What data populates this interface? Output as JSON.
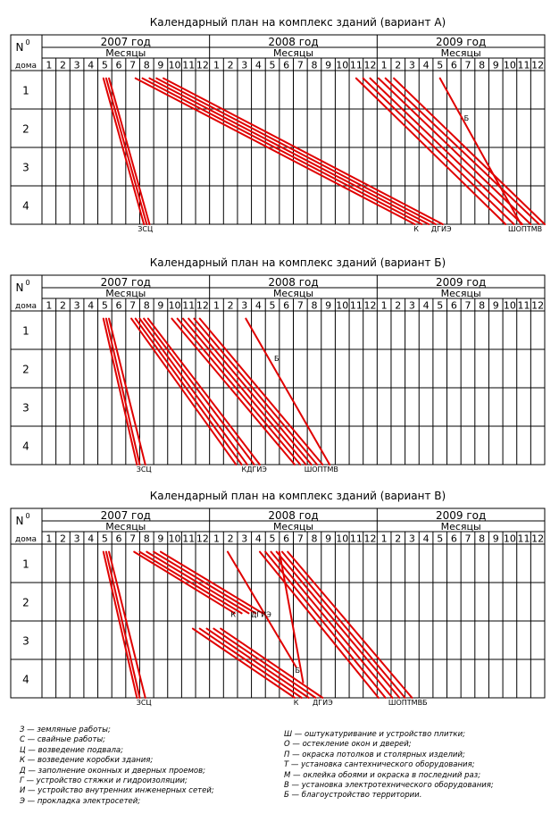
{
  "colors": {
    "grid": "#000000",
    "line": "#e00000",
    "text": "#000000",
    "background": "#ffffff"
  },
  "header": {
    "n0_label": "N",
    "n0_sup": "0",
    "doma_label": "дома",
    "months_label": "Месяцы",
    "house_numbers": [
      "1",
      "2",
      "3",
      "4"
    ],
    "month_numbers": [
      "1",
      "2",
      "3",
      "4",
      "5",
      "6",
      "7",
      "8",
      "9",
      "10",
      "11",
      "12"
    ]
  },
  "plans": [
    {
      "title": "Календарный план на комплекс зданий (вариант А)",
      "years": [
        "2007 год",
        "2008 год",
        "2009 год"
      ],
      "bottom_labels": [
        {
          "text": "ЗСЦ",
          "month": 7.4
        },
        {
          "text": "К",
          "month": 26.8
        },
        {
          "text": "ДГИЭ",
          "month": 28.6
        },
        {
          "text": "ШОПТМВ",
          "month": 34.6
        }
      ],
      "mid_labels": [
        {
          "text": "Б",
          "month": 30.4,
          "row": 1.3
        }
      ],
      "chart_data": {
        "type": "line",
        "x_unit": "month index from January 2007 (0–36)",
        "y_unit": "house (0 = top of house 1, 4 = bottom of house 4)",
        "series": [
          {
            "code": "З",
            "x": [
              4.4,
              7.3
            ],
            "y": [
              0.2,
              4
            ]
          },
          {
            "code": "С",
            "x": [
              4.6,
              7.5
            ],
            "y": [
              0.2,
              4
            ]
          },
          {
            "code": "Ц",
            "x": [
              4.8,
              7.7
            ],
            "y": [
              0.2,
              4
            ]
          },
          {
            "code": "К",
            "x": [
              6.7,
              26.7
            ],
            "y": [
              0.2,
              4
            ]
          },
          {
            "code": "Д",
            "x": [
              7.2,
              27.2
            ],
            "y": [
              0.2,
              4
            ]
          },
          {
            "code": "Г",
            "x": [
              7.7,
              27.7
            ],
            "y": [
              0.2,
              4
            ]
          },
          {
            "code": "И",
            "x": [
              8.2,
              28.2
            ],
            "y": [
              0.2,
              4
            ]
          },
          {
            "code": "Э",
            "x": [
              8.7,
              28.7
            ],
            "y": [
              0.2,
              4
            ]
          },
          {
            "code": "Ш",
            "x": [
              22.5,
              33.2
            ],
            "y": [
              0.2,
              4
            ]
          },
          {
            "code": "О",
            "x": [
              23.0,
              33.8
            ],
            "y": [
              0.2,
              4
            ]
          },
          {
            "code": "П",
            "x": [
              23.5,
              34.4
            ],
            "y": [
              0.2,
              4
            ]
          },
          {
            "code": "Т",
            "x": [
              24.1,
              35.0
            ],
            "y": [
              0.2,
              4
            ]
          },
          {
            "code": "М",
            "x": [
              24.6,
              35.6
            ],
            "y": [
              0.2,
              4
            ]
          },
          {
            "code": "В",
            "x": [
              25.2,
              36.0
            ],
            "y": [
              0.2,
              4
            ]
          },
          {
            "code": "Б",
            "x": [
              28.5,
              34.3
            ],
            "y": [
              0.2,
              4
            ]
          }
        ]
      }
    },
    {
      "title": "Календарный план на комплекс зданий (вариант Б)",
      "years": [
        "2007 год",
        "2008 год",
        "2009 год"
      ],
      "bottom_labels": [
        {
          "text": "ЗСЦ",
          "month": 7.3
        },
        {
          "text": "КДГИЭ",
          "month": 15.2
        },
        {
          "text": "ШОПТМВ",
          "month": 20.0
        }
      ],
      "mid_labels": [
        {
          "text": "Б",
          "month": 16.8,
          "row": 1.3
        }
      ],
      "chart_data": {
        "type": "line",
        "x_unit": "month index from January 2007 (0–36)",
        "y_unit": "house (0 = top of house 1, 4 = bottom of house 4)",
        "series": [
          {
            "code": "З",
            "x": [
              4.4,
              6.8
            ],
            "y": [
              0.2,
              4
            ]
          },
          {
            "code": "С",
            "x": [
              4.6,
              7.0
            ],
            "y": [
              0.2,
              4
            ]
          },
          {
            "code": "Ц",
            "x": [
              4.8,
              7.4
            ],
            "y": [
              0.2,
              4
            ]
          },
          {
            "code": "К",
            "x": [
              6.4,
              13.9
            ],
            "y": [
              0.2,
              4
            ]
          },
          {
            "code": "Д",
            "x": [
              6.7,
              14.3
            ],
            "y": [
              0.2,
              4
            ]
          },
          {
            "code": "Г",
            "x": [
              7.0,
              14.7
            ],
            "y": [
              0.2,
              4
            ]
          },
          {
            "code": "И",
            "x": [
              7.3,
              15.2
            ],
            "y": [
              0.2,
              4
            ]
          },
          {
            "code": "Э",
            "x": [
              7.6,
              15.6
            ],
            "y": [
              0.2,
              4
            ]
          },
          {
            "code": "Ш",
            "x": [
              9.3,
              18.1
            ],
            "y": [
              0.2,
              4
            ]
          },
          {
            "code": "О",
            "x": [
              9.7,
              18.5
            ],
            "y": [
              0.2,
              4
            ]
          },
          {
            "code": "П",
            "x": [
              10.1,
              18.9
            ],
            "y": [
              0.2,
              4
            ]
          },
          {
            "code": "Т",
            "x": [
              10.5,
              19.3
            ],
            "y": [
              0.2,
              4
            ]
          },
          {
            "code": "М",
            "x": [
              10.9,
              19.7
            ],
            "y": [
              0.2,
              4
            ]
          },
          {
            "code": "В",
            "x": [
              11.3,
              20.1
            ],
            "y": [
              0.2,
              4
            ]
          },
          {
            "code": "Б",
            "x": [
              14.6,
              20.6
            ],
            "y": [
              0.2,
              4
            ]
          }
        ]
      }
    },
    {
      "title": "Календарный план на комплекс зданий (вариант В)",
      "years": [
        "2007 год",
        "2008 год",
        "2009 год"
      ],
      "bottom_labels": [
        {
          "text": "ЗСЦ",
          "month": 7.3
        },
        {
          "text": "К",
          "month": 18.2
        },
        {
          "text": "ДГИЭ",
          "month": 20.1
        },
        {
          "text": "ШОПТМВБ",
          "month": 26.2
        }
      ],
      "mid_labels": [
        {
          "text": "К",
          "month": 13.7,
          "row": 1.9
        },
        {
          "text": "ДГИЭ",
          "month": 15.7,
          "row": 1.9
        },
        {
          "text": "Б",
          "month": 18.3,
          "row": 3.35
        }
      ],
      "chart_data": {
        "type": "line",
        "x_unit": "month index from January 2007 (0–36)",
        "y_unit": "house (0 = top of house 1, 4 = bottom of house 4)",
        "series": [
          {
            "code": "З",
            "x": [
              4.4,
              6.8
            ],
            "y": [
              0.2,
              4
            ]
          },
          {
            "code": "С",
            "x": [
              4.6,
              7.0
            ],
            "y": [
              0.2,
              4
            ]
          },
          {
            "code": "Ц",
            "x": [
              4.8,
              7.4
            ],
            "y": [
              0.2,
              4
            ]
          },
          {
            "code": "К1",
            "x": [
              6.6,
              13.8
            ],
            "y": [
              0.2,
              1.8
            ]
          },
          {
            "code": "Д1",
            "x": [
              7.0,
              14.3
            ],
            "y": [
              0.2,
              1.8
            ]
          },
          {
            "code": "Г1",
            "x": [
              7.5,
              14.8
            ],
            "y": [
              0.2,
              1.8
            ]
          },
          {
            "code": "И1",
            "x": [
              8.0,
              15.3
            ],
            "y": [
              0.2,
              1.8
            ]
          },
          {
            "code": "Э1",
            "x": [
              8.5,
              15.8
            ],
            "y": [
              0.2,
              1.8
            ]
          },
          {
            "code": "К2",
            "x": [
              10.8,
              18.1
            ],
            "y": [
              2.2,
              4
            ]
          },
          {
            "code": "Д2",
            "x": [
              11.3,
              18.6
            ],
            "y": [
              2.2,
              4
            ]
          },
          {
            "code": "Г2",
            "x": [
              11.8,
              19.1
            ],
            "y": [
              2.2,
              4
            ]
          },
          {
            "code": "И2",
            "x": [
              12.3,
              19.6
            ],
            "y": [
              2.2,
              4
            ]
          },
          {
            "code": "Э2",
            "x": [
              12.8,
              20.1
            ],
            "y": [
              2.2,
              4
            ]
          },
          {
            "code": "Ш",
            "x": [
              15.6,
              24.1
            ],
            "y": [
              0.2,
              4
            ]
          },
          {
            "code": "О",
            "x": [
              16.0,
              24.6
            ],
            "y": [
              0.2,
              4
            ]
          },
          {
            "code": "П",
            "x": [
              16.4,
              25.1
            ],
            "y": [
              0.2,
              4
            ]
          },
          {
            "code": "Т",
            "x": [
              16.8,
              25.6
            ],
            "y": [
              0.2,
              4
            ]
          },
          {
            "code": "М",
            "x": [
              17.2,
              26.0
            ],
            "y": [
              0.2,
              4
            ]
          },
          {
            "code": "В",
            "x": [
              17.6,
              26.5
            ],
            "y": [
              0.2,
              4
            ]
          },
          {
            "code": "Б",
            "x": [
              13.3,
              18.2
            ],
            "y": [
              0.2,
              3.2
            ]
          },
          {
            "code": "Ээ",
            "x": [
              17.0,
              18.7
            ],
            "y": [
              0.2,
              3.6
            ]
          }
        ]
      }
    }
  ],
  "legend_left": [
    "З — земляные работы;",
    "С — свайные работы;",
    "Ц — возведение подвала;",
    "К — возведение коробки здания;",
    "Д — заполнение оконных и дверных проемов;",
    "Г — устройство стяжки и гидроизоляции;",
    "И — устройство внутренних инженерных сетей;",
    "Э — прокладка электросетей;"
  ],
  "legend_right": [
    "Ш — оштукатуривание и устройство плитки;",
    "О — остекление окон и дверей;",
    "П — окраска потолков и столярных изделий;",
    "Т — установка сантехнического оборудования;",
    "М — оклейка обоями и окраска в последний раз;",
    "В — установка электротехнического оборудования;",
    "Б — благоустройство территории."
  ]
}
